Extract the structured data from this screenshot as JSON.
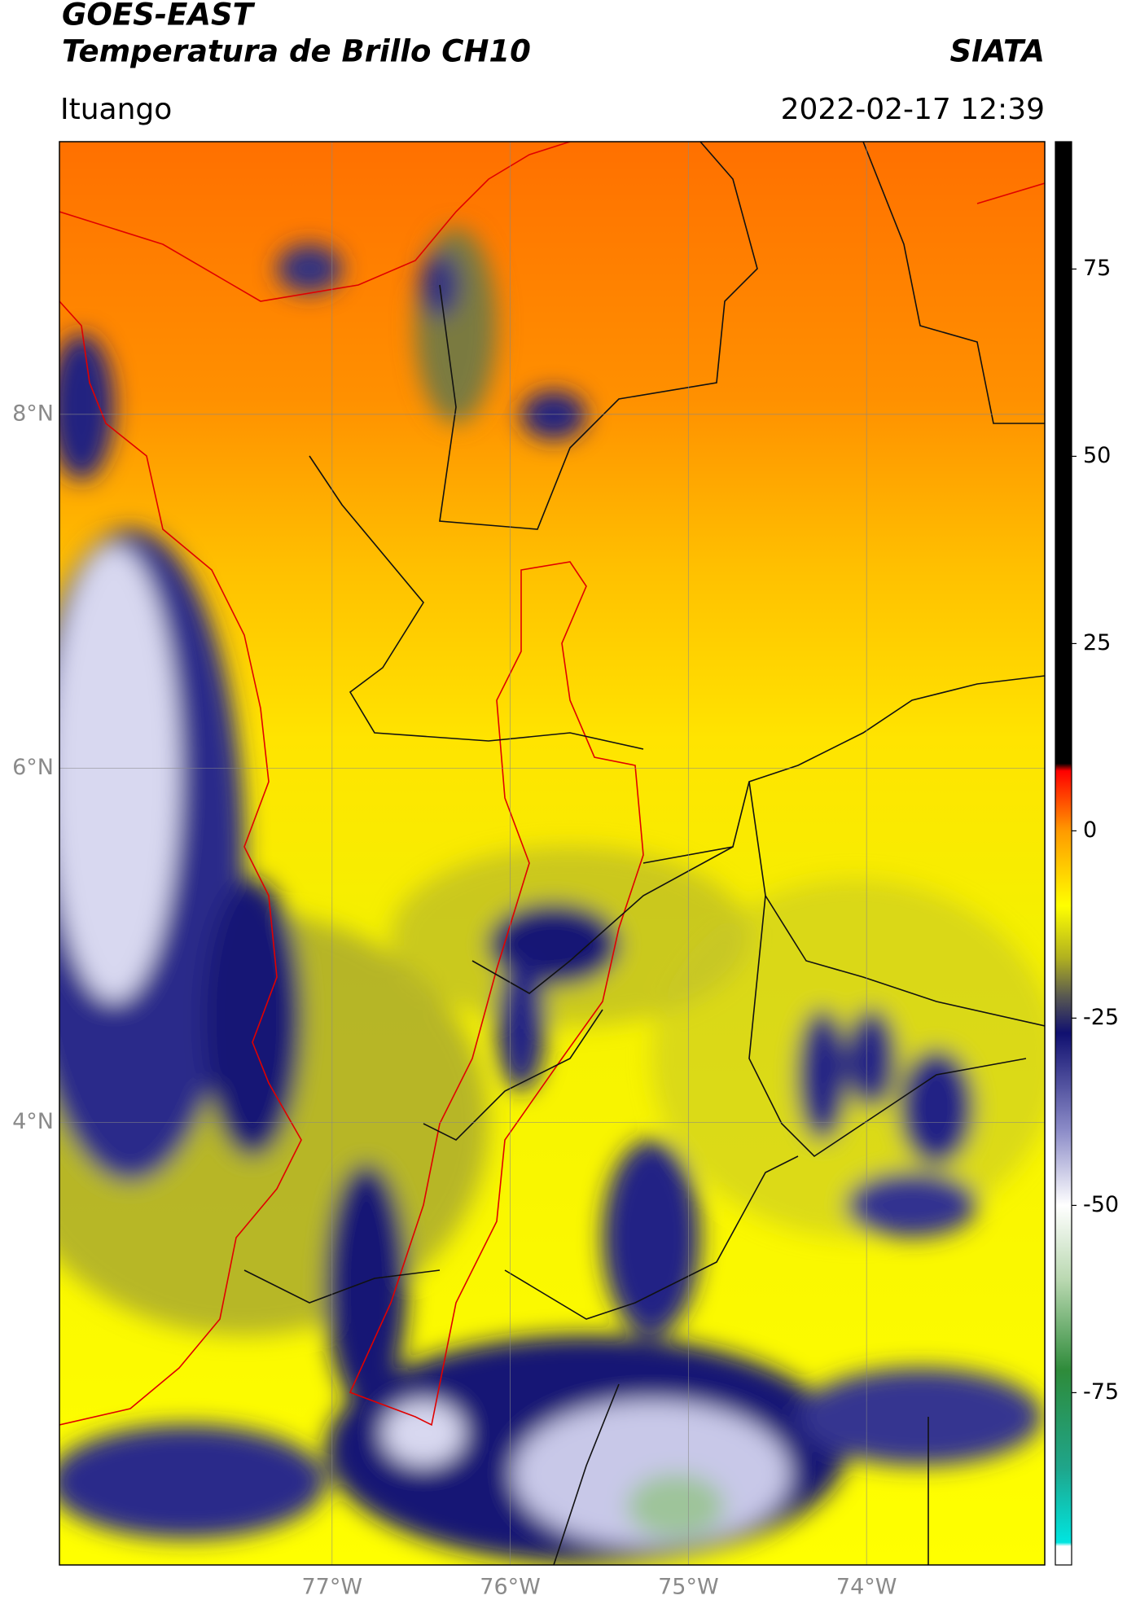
{
  "header": {
    "title": "GOES-EAST",
    "subtitle": "Temperatura de Brillo CH10",
    "agency": "SIATA",
    "region": "Ituango",
    "datetime": "2022-02-17 12:39"
  },
  "map": {
    "xlim": [
      -78.53,
      -73.0
    ],
    "ylim": [
      1.5,
      9.54
    ],
    "xticks": [
      {
        "value": -77,
        "label": "77°W"
      },
      {
        "value": -76,
        "label": "76°W"
      },
      {
        "value": -75,
        "label": "75°W"
      },
      {
        "value": -74,
        "label": "74°W"
      }
    ],
    "yticks": [
      {
        "value": 8,
        "label": "8°N"
      },
      {
        "value": 6,
        "label": "6°N"
      },
      {
        "value": 4,
        "label": "4°N"
      }
    ],
    "grid": true
  },
  "colorbar": {
    "clim": [
      -98,
      92
    ],
    "ticks": [
      75,
      50,
      25,
      0,
      -25,
      -50,
      -75
    ],
    "colormap": [
      {
        "value": -98,
        "color": "#ffffff"
      },
      {
        "value": -95.5,
        "color": "#ffffff"
      },
      {
        "value": -95,
        "color": "#00e5e0"
      },
      {
        "value": -85,
        "color": "#1fa58a"
      },
      {
        "value": -72,
        "color": "#2e8b3a"
      },
      {
        "value": -60,
        "color": "#b9d8b0"
      },
      {
        "value": -50,
        "color": "#ffffff"
      },
      {
        "value": -40,
        "color": "#8c8cc8"
      },
      {
        "value": -27,
        "color": "#101070"
      },
      {
        "value": -22,
        "color": "#5a5a50"
      },
      {
        "value": -17,
        "color": "#b0b020"
      },
      {
        "value": -10,
        "color": "#ffff00"
      },
      {
        "value": 0,
        "color": "#ff9a00"
      },
      {
        "value": 8,
        "color": "#ff0000"
      },
      {
        "value": 9,
        "color": "#000000"
      },
      {
        "value": 92,
        "color": "#000000"
      }
    ]
  }
}
